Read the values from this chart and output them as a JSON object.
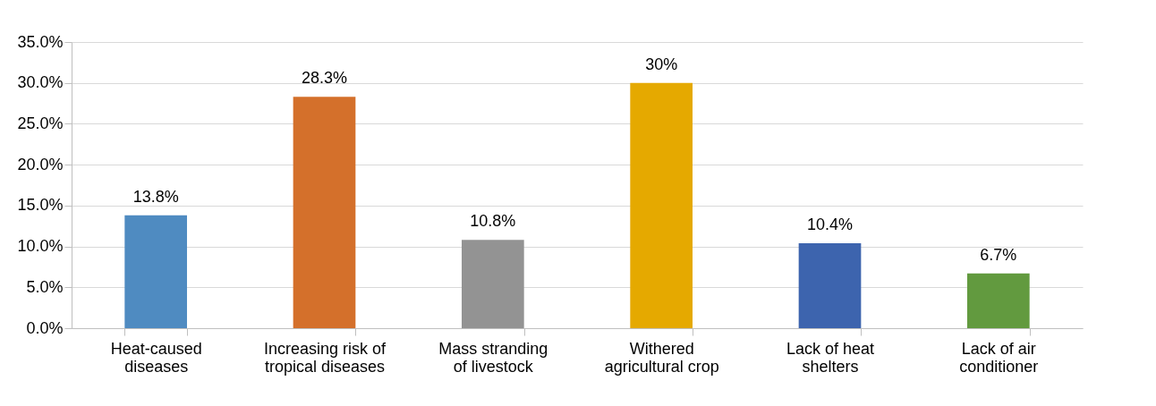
{
  "chart_data": {
    "type": "bar",
    "categories": [
      "Heat-caused diseases",
      "Increasing risk of tropical diseases",
      "Mass stranding of livestock",
      "Withered agricultural crop",
      "Lack of heat shelters",
      "Lack of air conditioner"
    ],
    "values": [
      13.8,
      28.3,
      10.8,
      30,
      10.4,
      6.7
    ],
    "colors": [
      "#4f8bc1",
      "#d4702b",
      "#939393",
      "#e5a900",
      "#3d64ae",
      "#629a3f"
    ],
    "value_labels": [
      "13.8%",
      "28.3%",
      "10.8%",
      "30%",
      "10.4%",
      "6.7%"
    ],
    "ylim": [
      0,
      35
    ],
    "yticks": [
      {
        "value": 0,
        "label": "0.0%"
      },
      {
        "value": 5,
        "label": "5.0%"
      },
      {
        "value": 10,
        "label": "10.0%"
      },
      {
        "value": 15,
        "label": "15.0%"
      },
      {
        "value": 20,
        "label": "20.0%"
      },
      {
        "value": 25,
        "label": "25.0%"
      },
      {
        "value": 30,
        "label": "30.0%"
      },
      {
        "value": 35,
        "label": "35.0%"
      }
    ],
    "grid": "y"
  }
}
